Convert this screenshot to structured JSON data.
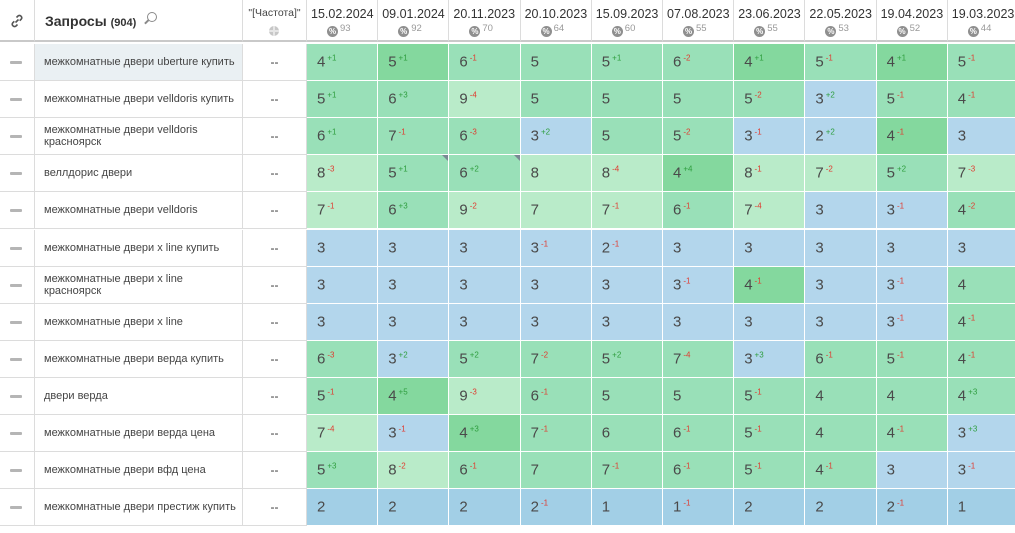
{
  "header": {
    "title": "Запросы",
    "count": "(904)",
    "frequency_label": "\"[Частота]\"",
    "dates": [
      {
        "date": "15.02.2024",
        "visibility": "93"
      },
      {
        "date": "09.01.2024",
        "visibility": "92"
      },
      {
        "date": "20.11.2023",
        "visibility": "70"
      },
      {
        "date": "20.10.2023",
        "visibility": "64"
      },
      {
        "date": "15.09.2023",
        "visibility": "60"
      },
      {
        "date": "07.08.2023",
        "visibility": "55"
      },
      {
        "date": "23.06.2023",
        "visibility": "55"
      },
      {
        "date": "22.05.2023",
        "visibility": "53"
      },
      {
        "date": "19.04.2023",
        "visibility": "52"
      },
      {
        "date": "19.03.2023",
        "visibility": "44"
      }
    ],
    "percent_symbol": "%"
  },
  "icons": {
    "link": "link-icon",
    "search": "search-icon",
    "globe": "globe-icon",
    "row_marker": "dash-icon"
  },
  "colors": {
    "top3": "#b3d6ec",
    "top10": "#99e0b8",
    "top10_bright": "#84d89e",
    "top10_light": "#b9ebc9",
    "top1": "#a2cfe6",
    "up": "#2e9e3e",
    "down": "#e03a2f"
  },
  "rows": [
    {
      "query": "межкомнатные двери uberture купить",
      "freq": "--",
      "cells": [
        [
          "4",
          "+1"
        ],
        [
          "5",
          "+1"
        ],
        [
          "6",
          "-1"
        ],
        [
          "5",
          ""
        ],
        [
          "5",
          "+1"
        ],
        [
          "6",
          "-2"
        ],
        [
          "4",
          "+1"
        ],
        [
          "5",
          "-1"
        ],
        [
          "4",
          "+1"
        ],
        [
          "5",
          "-1"
        ]
      ]
    },
    {
      "query": "межкомнатные двери velldoris купить",
      "freq": "--",
      "cells": [
        [
          "5",
          "+1"
        ],
        [
          "6",
          "+3"
        ],
        [
          "9",
          "-4"
        ],
        [
          "5",
          ""
        ],
        [
          "5",
          ""
        ],
        [
          "5",
          ""
        ],
        [
          "5",
          "-2"
        ],
        [
          "3",
          "+2"
        ],
        [
          "5",
          "-1"
        ],
        [
          "4",
          "-1"
        ]
      ]
    },
    {
      "query": "межкомнатные двери velldoris красноярск",
      "freq": "--",
      "cells": [
        [
          "6",
          "+1"
        ],
        [
          "7",
          "-1"
        ],
        [
          "6",
          "-3"
        ],
        [
          "3",
          "+2"
        ],
        [
          "5",
          ""
        ],
        [
          "5",
          "-2"
        ],
        [
          "3",
          "-1"
        ],
        [
          "2",
          "+2"
        ],
        [
          "4",
          "-1"
        ],
        [
          "3",
          ""
        ]
      ]
    },
    {
      "query": "веллдорис двери",
      "freq": "--",
      "cells": [
        [
          "8",
          "-3"
        ],
        [
          "5",
          "+1"
        ],
        [
          "6",
          "+2"
        ],
        [
          "8",
          ""
        ],
        [
          "8",
          "-4"
        ],
        [
          "4",
          "+4"
        ],
        [
          "8",
          "-1"
        ],
        [
          "7",
          "-2"
        ],
        [
          "5",
          "+2"
        ],
        [
          "7",
          "-3"
        ]
      ]
    },
    {
      "query": "межкомнатные двери velldoris",
      "freq": "--",
      "cells": [
        [
          "7",
          "-1"
        ],
        [
          "6",
          "+3"
        ],
        [
          "9",
          "-2"
        ],
        [
          "7",
          ""
        ],
        [
          "7",
          "-1"
        ],
        [
          "6",
          "-1"
        ],
        [
          "7",
          "-4"
        ],
        [
          "3",
          ""
        ],
        [
          "3",
          "-1"
        ],
        [
          "4",
          "-2"
        ]
      ]
    },
    {
      "query": "межкомнатные двери x line купить",
      "freq": "--",
      "cells": [
        [
          "3",
          ""
        ],
        [
          "3",
          ""
        ],
        [
          "3",
          ""
        ],
        [
          "3",
          "-1"
        ],
        [
          "2",
          "-1"
        ],
        [
          "3",
          ""
        ],
        [
          "3",
          ""
        ],
        [
          "3",
          ""
        ],
        [
          "3",
          ""
        ],
        [
          "3",
          ""
        ]
      ]
    },
    {
      "query": "межкомнатные двери x line красноярск",
      "freq": "--",
      "cells": [
        [
          "3",
          ""
        ],
        [
          "3",
          ""
        ],
        [
          "3",
          ""
        ],
        [
          "3",
          ""
        ],
        [
          "3",
          ""
        ],
        [
          "3",
          "-1"
        ],
        [
          "4",
          "-1"
        ],
        [
          "3",
          ""
        ],
        [
          "3",
          "-1"
        ],
        [
          "4",
          ""
        ]
      ]
    },
    {
      "query": "межкомнатные двери x line",
      "freq": "--",
      "cells": [
        [
          "3",
          ""
        ],
        [
          "3",
          ""
        ],
        [
          "3",
          ""
        ],
        [
          "3",
          ""
        ],
        [
          "3",
          ""
        ],
        [
          "3",
          ""
        ],
        [
          "3",
          ""
        ],
        [
          "3",
          ""
        ],
        [
          "3",
          "-1"
        ],
        [
          "4",
          "-1"
        ]
      ]
    },
    {
      "query": "межкомнатные двери верда купить",
      "freq": "--",
      "cells": [
        [
          "6",
          "-3"
        ],
        [
          "3",
          "+2"
        ],
        [
          "5",
          "+2"
        ],
        [
          "7",
          "-2"
        ],
        [
          "5",
          "+2"
        ],
        [
          "7",
          "-4"
        ],
        [
          "3",
          "+3"
        ],
        [
          "6",
          "-1"
        ],
        [
          "5",
          "-1"
        ],
        [
          "4",
          "-1"
        ]
      ]
    },
    {
      "query": "двери верда",
      "freq": "--",
      "cells": [
        [
          "5",
          "-1"
        ],
        [
          "4",
          "+5"
        ],
        [
          "9",
          "-3"
        ],
        [
          "6",
          "-1"
        ],
        [
          "5",
          ""
        ],
        [
          "5",
          ""
        ],
        [
          "5",
          "-1"
        ],
        [
          "4",
          ""
        ],
        [
          "4",
          ""
        ],
        [
          "4",
          "+3"
        ]
      ]
    },
    {
      "query": "межкомнатные двери верда цена",
      "freq": "--",
      "cells": [
        [
          "7",
          "-4"
        ],
        [
          "3",
          "-1"
        ],
        [
          "4",
          "+3"
        ],
        [
          "7",
          "-1"
        ],
        [
          "6",
          ""
        ],
        [
          "6",
          "-1"
        ],
        [
          "5",
          "-1"
        ],
        [
          "4",
          ""
        ],
        [
          "4",
          "-1"
        ],
        [
          "3",
          "+3"
        ]
      ]
    },
    {
      "query": "межкомнатные двери вфд цена",
      "freq": "--",
      "cells": [
        [
          "5",
          "+3"
        ],
        [
          "8",
          "-2"
        ],
        [
          "6",
          "-1"
        ],
        [
          "7",
          ""
        ],
        [
          "7",
          "-1"
        ],
        [
          "6",
          "-1"
        ],
        [
          "5",
          "-1"
        ],
        [
          "4",
          "-1"
        ],
        [
          "3",
          ""
        ],
        [
          "3",
          "-1"
        ]
      ]
    },
    {
      "query": "межкомнатные двери престиж купить",
      "freq": "--",
      "cells": [
        [
          "2",
          ""
        ],
        [
          "2",
          ""
        ],
        [
          "2",
          ""
        ],
        [
          "2",
          "-1"
        ],
        [
          "1",
          ""
        ],
        [
          "1",
          "-1"
        ],
        [
          "2",
          ""
        ],
        [
          "2",
          ""
        ],
        [
          "2",
          "-1"
        ],
        [
          "1",
          ""
        ]
      ]
    }
  ],
  "cell_colors": [
    [
      "top10",
      "top10_bright",
      "top10",
      "top10",
      "top10",
      "top10",
      "top10_bright",
      "top10",
      "top10_bright",
      "top10"
    ],
    [
      "top10",
      "top10",
      "top10_light",
      "top10",
      "top10",
      "top10",
      "top10",
      "top3",
      "top10",
      "top10"
    ],
    [
      "top10",
      "top10",
      "top10",
      "top3",
      "top10",
      "top10",
      "top3",
      "top3",
      "top10_bright",
      "top3"
    ],
    [
      "top10_light",
      "top10",
      "top10",
      "top10_light",
      "top10_light",
      "top10_bright",
      "top10_light",
      "top10_light",
      "top10",
      "top10_light"
    ],
    [
      "top10_light",
      "top10",
      "top10_light",
      "top10_light",
      "top10_light",
      "top10",
      "top10_light",
      "top3",
      "top3",
      "top10"
    ],
    [
      "top3",
      "top3",
      "top3",
      "top3",
      "top3",
      "top3",
      "top3",
      "top3",
      "top3",
      "top3"
    ],
    [
      "top3",
      "top3",
      "top3",
      "top3",
      "top3",
      "top3",
      "top10_bright",
      "top3",
      "top3",
      "top10"
    ],
    [
      "top3",
      "top3",
      "top3",
      "top3",
      "top3",
      "top3",
      "top3",
      "top3",
      "top3",
      "top10"
    ],
    [
      "top10",
      "top3",
      "top10",
      "top10",
      "top10",
      "top10",
      "top3",
      "top10",
      "top10",
      "top10"
    ],
    [
      "top10",
      "top10_bright",
      "top10_light",
      "top10",
      "top10",
      "top10",
      "top10",
      "top10",
      "top10",
      "top10"
    ],
    [
      "top10_light",
      "top3",
      "top10_bright",
      "top10",
      "top10",
      "top10",
      "top10",
      "top10",
      "top10",
      "top3"
    ],
    [
      "top10",
      "top10_light",
      "top10",
      "top10",
      "top10",
      "top10",
      "top10",
      "top10",
      "top3",
      "top3"
    ],
    [
      "top1",
      "top1",
      "top1",
      "top1",
      "top1",
      "top1",
      "top1",
      "top1",
      "top1",
      "top1"
    ]
  ],
  "corner_marks": [
    [
      3,
      1
    ],
    [
      3,
      2
    ]
  ]
}
